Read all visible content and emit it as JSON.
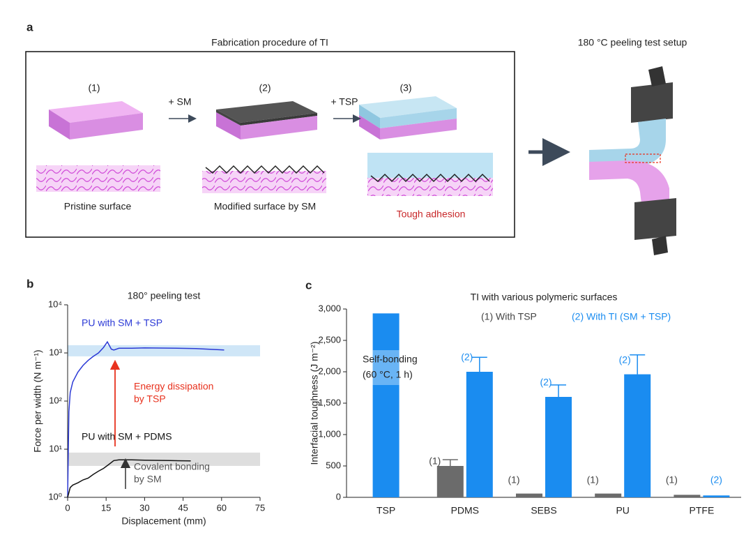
{
  "panel_a": {
    "letter": "a",
    "title": "Fabrication procedure of TI",
    "steps": [
      "(1)",
      "(2)",
      "(3)"
    ],
    "arrows": [
      "+ SM",
      "+ TSP"
    ],
    "captions": [
      "Pristine surface",
      "Modified surface by SM",
      "Tough adhesion"
    ],
    "setup_title": "180 °C peeling test setup"
  },
  "chart_data": [
    {
      "type": "line",
      "letter": "b",
      "title": "180° peeling test",
      "xlabel": "Displacement (mm)",
      "ylabel": "Force per width (N m⁻¹)",
      "log_y": true,
      "xlim": [
        0,
        75
      ],
      "xticks": [
        0,
        15,
        30,
        45,
        60,
        75
      ],
      "ylim": [
        1,
        10000
      ],
      "yticks": [
        {
          "value": 1,
          "label": "10⁰"
        },
        {
          "value": 10,
          "label": "10¹"
        },
        {
          "value": 100,
          "label": "10²"
        },
        {
          "value": 1000,
          "label": "10³"
        },
        {
          "value": 10000,
          "label": "10⁴"
        }
      ],
      "bands": [
        {
          "from": 850,
          "to": 1450,
          "color": "#cfe6f7"
        },
        {
          "from": 4.5,
          "to": 8.5,
          "color": "#dedede"
        }
      ],
      "series": [
        {
          "name": "PU with SM + TSP",
          "color": "#2b39d6",
          "x": [
            0,
            0.5,
            1,
            2,
            4,
            6,
            8,
            10,
            12,
            14,
            15.5,
            17,
            18,
            20,
            25,
            30,
            40,
            50,
            61
          ],
          "values": [
            1,
            60,
            150,
            250,
            400,
            550,
            700,
            850,
            1000,
            1300,
            1700,
            1200,
            1150,
            1250,
            1250,
            1270,
            1260,
            1230,
            1150
          ]
        },
        {
          "name": "PU with SM + PDMS",
          "color": "#111111",
          "x": [
            0,
            1,
            2,
            4,
            6,
            8,
            10,
            12,
            14,
            16,
            18,
            20,
            25,
            30,
            40,
            48
          ],
          "values": [
            1,
            1.6,
            1.8,
            2,
            2.3,
            2.5,
            3,
            3.5,
            4,
            4.8,
            5.8,
            6,
            6,
            5.9,
            5.8,
            5.7
          ]
        }
      ],
      "annotations": [
        {
          "lines": [
            "Energy dissipation",
            "by TSP"
          ],
          "color": "#e8321e"
        },
        {
          "lines": [
            "Covalent bonding",
            "by SM"
          ],
          "color": "#555555"
        }
      ]
    },
    {
      "type": "bar",
      "letter": "c",
      "title": "TI with various polymeric surfaces",
      "ylabel": "Interfacial toughness (J m⁻²)",
      "categories": [
        "TSP",
        "PDMS",
        "SEBS",
        "PU",
        "PTFE"
      ],
      "ylim": [
        0,
        3000
      ],
      "yticks": [
        0,
        500,
        {
          "value": 1000,
          "label": "1,000"
        },
        {
          "value": 1500,
          "label": "1,500"
        },
        {
          "value": 2000,
          "label": "2,000"
        },
        {
          "value": 2500,
          "label": "2,500"
        },
        {
          "value": 3000,
          "label": "3,000"
        }
      ],
      "series": [
        {
          "name": "(1) With TSP",
          "color": "#6b6b6b",
          "values": [
            null,
            500,
            60,
            60,
            40
          ],
          "errors": [
            null,
            100,
            null,
            null,
            null
          ],
          "labels": [
            null,
            "(1)",
            "(1)",
            "(1)",
            "(1)"
          ]
        },
        {
          "name": "(2) With TI (SM + TSP)",
          "color": "#1a8cf0",
          "values": [
            2930,
            2000,
            1600,
            1960,
            30
          ],
          "errors": [
            null,
            230,
            190,
            310,
            null
          ],
          "labels": [
            null,
            "(2)",
            "(2)",
            "(2)",
            "(2)"
          ]
        }
      ],
      "annotations": [
        {
          "lines": [
            "Self-bonding",
            "(60 °C, 1 h)"
          ],
          "color": "#222222"
        }
      ]
    }
  ]
}
